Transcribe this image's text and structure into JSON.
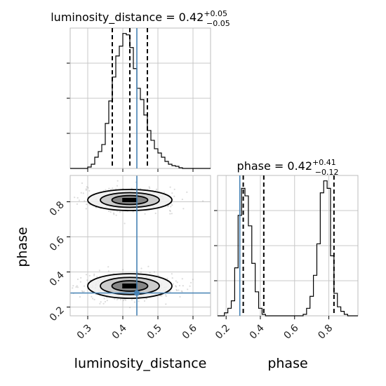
{
  "chart_data": [
    {
      "type": "histogram",
      "panel": "luminosity_distance-marginal",
      "title": {
        "main": "luminosity_distance = 0.42",
        "sup": "+0.05",
        "sub": "−0.05"
      },
      "xlabel": "luminosity_distance",
      "xlim": [
        0.25,
        0.65
      ],
      "xticks": [
        0.3,
        0.4,
        0.5,
        0.6
      ],
      "grid": true,
      "bin_edges": [
        0.25,
        0.26,
        0.27,
        0.28,
        0.29,
        0.3,
        0.31,
        0.32,
        0.33,
        0.34,
        0.35,
        0.36,
        0.37,
        0.38,
        0.39,
        0.4,
        0.41,
        0.42,
        0.43,
        0.44,
        0.45,
        0.46,
        0.47,
        0.48,
        0.49,
        0.5,
        0.51,
        0.52,
        0.53,
        0.54,
        0.55,
        0.56,
        0.57,
        0.58,
        0.59,
        0.6,
        0.61,
        0.62,
        0.63,
        0.64,
        0.65
      ],
      "counts": [
        0,
        0,
        0,
        0,
        0,
        0.01,
        0.03,
        0.08,
        0.12,
        0.17,
        0.32,
        0.48,
        0.65,
        0.8,
        0.87,
        0.96,
        0.95,
        0.86,
        0.71,
        0.57,
        0.49,
        0.38,
        0.27,
        0.2,
        0.14,
        0.11,
        0.08,
        0.05,
        0.03,
        0.02,
        0.015,
        0.005,
        0,
        0,
        0,
        0,
        0,
        0,
        0,
        0
      ],
      "quantiles": [
        0.37,
        0.42,
        0.47
      ],
      "truth": 0.44
    },
    {
      "type": "scatter",
      "panel": "2d-joint",
      "xlabel": "luminosity_distance",
      "ylabel": "phase",
      "xlim": [
        0.25,
        0.65
      ],
      "ylim": [
        0.15,
        0.95
      ],
      "xticks": [
        0.3,
        0.4,
        0.5,
        0.6
      ],
      "yticks": [
        0.2,
        0.4,
        0.6,
        0.8
      ],
      "grid": true,
      "truth": {
        "x": 0.44,
        "y": 0.28
      },
      "modes": [
        {
          "x": 0.42,
          "y": 0.81,
          "sx": 0.06,
          "sy": 0.03,
          "weight": 0.45
        },
        {
          "x": 0.42,
          "y": 0.32,
          "sx": 0.06,
          "sy": 0.035,
          "weight": 0.55
        }
      ]
    },
    {
      "type": "histogram",
      "panel": "phase-marginal",
      "title": {
        "main": "phase = 0.42",
        "sup": "+0.41",
        "sub": "−0.12"
      },
      "xlabel": "phase",
      "xlim": [
        0.15,
        0.97
      ],
      "xticks": [
        0.2,
        0.4,
        0.6,
        0.8
      ],
      "grid": true,
      "bin_edges": [
        0.15,
        0.17,
        0.19,
        0.21,
        0.23,
        0.25,
        0.27,
        0.29,
        0.31,
        0.33,
        0.35,
        0.37,
        0.39,
        0.41,
        0.43,
        0.45,
        0.47,
        0.49,
        0.51,
        0.53,
        0.55,
        0.57,
        0.59,
        0.61,
        0.63,
        0.65,
        0.67,
        0.69,
        0.71,
        0.73,
        0.75,
        0.77,
        0.79,
        0.81,
        0.83,
        0.85,
        0.87,
        0.89,
        0.91,
        0.93,
        0.95,
        0.97
      ],
      "counts": [
        0,
        0,
        0.02,
        0.05,
        0.1,
        0.32,
        0.67,
        0.85,
        0.8,
        0.6,
        0.35,
        0.16,
        0.05,
        0.01,
        0,
        0,
        0,
        0,
        0,
        0,
        0,
        0,
        0,
        0,
        0,
        0.01,
        0.05,
        0.13,
        0.27,
        0.48,
        0.82,
        0.9,
        0.85,
        0.4,
        0.15,
        0.06,
        0.03,
        0.01,
        0,
        0,
        0
      ],
      "quantiles": [
        0.3,
        0.42,
        0.83
      ],
      "truth": 0.28
    }
  ],
  "colors": {
    "truth": "#4682b4",
    "hist": "#000000",
    "grid": "#c8c8c8",
    "scatter": "#9a9a9a"
  }
}
